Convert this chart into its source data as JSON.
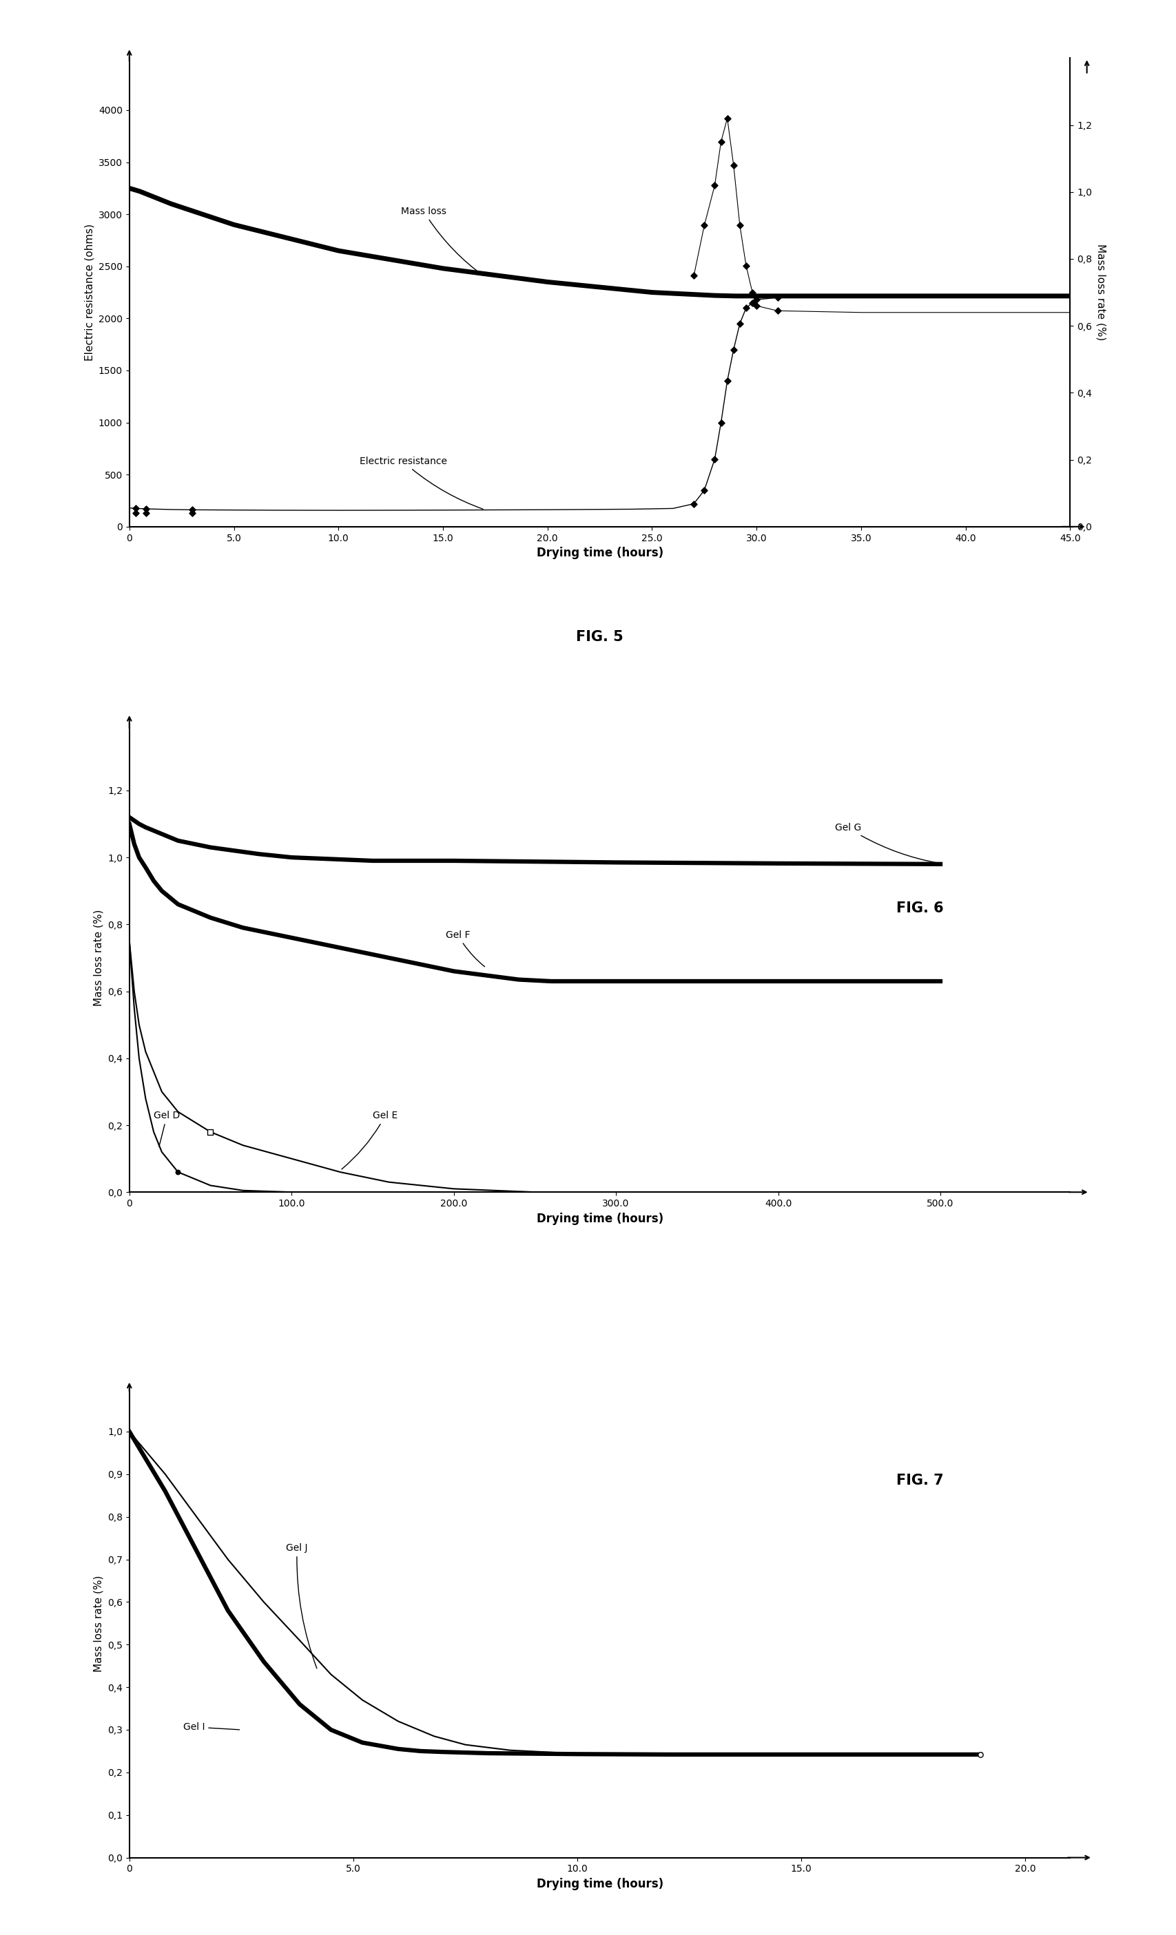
{
  "fig5": {
    "title": "FIG. 5",
    "xlabel": "Drying time (hours)",
    "ylabel_left": "Electric resistance (ohms)",
    "ylabel_right": "Mass loss rate (%)",
    "resistance_x": [
      0,
      0.3,
      0.8,
      1,
      2,
      3,
      5,
      7,
      10,
      13,
      16,
      20,
      24,
      26,
      27,
      27.5,
      28,
      28.3,
      28.6,
      28.9,
      29.2,
      29.5,
      29.8,
      30,
      31,
      33,
      36,
      40,
      45
    ],
    "resistance_y": [
      180,
      175,
      172,
      170,
      165,
      162,
      160,
      158,
      157,
      158,
      160,
      163,
      168,
      175,
      220,
      350,
      650,
      1000,
      1400,
      1700,
      1950,
      2100,
      2150,
      2180,
      2200,
      2200,
      2200,
      2200,
      2200
    ],
    "mass_loss_x": [
      0,
      0.5,
      2,
      5,
      10,
      15,
      20,
      25,
      27,
      28,
      29,
      30,
      35,
      40,
      45
    ],
    "mass_loss_y": [
      3250,
      3220,
      3100,
      2900,
      2650,
      2480,
      2350,
      2250,
      2230,
      2220,
      2215,
      2215,
      2215,
      2215,
      2215
    ],
    "mlr_line_x": [
      27.0,
      27.5,
      28.0,
      28.3,
      28.6,
      28.9,
      29.2,
      29.5,
      29.8,
      30.0,
      31.0,
      35.0,
      40.0,
      45.0
    ],
    "mlr_line_y": [
      0.75,
      0.9,
      1.02,
      1.15,
      1.22,
      1.08,
      0.9,
      0.78,
      0.7,
      0.66,
      0.645,
      0.64,
      0.64,
      0.64
    ],
    "mlr_marker_x": [
      0.3,
      0.8,
      3.0,
      27.0,
      27.5,
      28.0,
      28.3,
      28.6,
      28.9,
      29.2,
      29.5,
      29.8,
      30.0,
      31.0
    ],
    "mlr_marker_y": [
      0.04,
      0.04,
      0.04,
      0.75,
      0.9,
      1.02,
      1.15,
      1.22,
      1.08,
      0.9,
      0.78,
      0.7,
      0.66,
      0.645
    ],
    "xlim": [
      0,
      45
    ],
    "ylim_left": [
      0,
      4500
    ],
    "ylim_right": [
      0.0,
      1.4
    ],
    "xticks": [
      0,
      5.0,
      10.0,
      15.0,
      20.0,
      25.0,
      30.0,
      35.0,
      40.0,
      45.0
    ],
    "yticks_left": [
      0,
      500,
      1000,
      1500,
      2000,
      2500,
      3000,
      3500,
      4000
    ],
    "yticks_right": [
      0.0,
      0.2,
      0.4,
      0.6,
      0.8,
      1.0,
      1.2
    ]
  },
  "fig6": {
    "title": "FIG. 6",
    "xlabel": "Drying time (hours)",
    "ylabel": "Mass loss rate (%)",
    "xlim": [
      0,
      580
    ],
    "ylim": [
      0.0,
      1.4
    ],
    "xticks": [
      0,
      100.0,
      200.0,
      300.0,
      400.0,
      500.0
    ],
    "yticks": [
      0.0,
      0.2,
      0.4,
      0.6,
      0.8,
      1.0,
      1.2
    ],
    "gel_D_x": [
      0,
      3,
      6,
      10,
      15,
      20,
      30,
      50,
      70,
      100,
      150,
      200,
      300,
      500
    ],
    "gel_D_y": [
      0.75,
      0.55,
      0.4,
      0.28,
      0.18,
      0.12,
      0.06,
      0.02,
      0.005,
      0.0,
      0.0,
      0.0,
      0.0,
      0.0
    ],
    "gel_E_x": [
      0,
      3,
      6,
      10,
      15,
      20,
      30,
      50,
      70,
      100,
      130,
      160,
      200,
      250,
      300,
      500
    ],
    "gel_E_y": [
      0.75,
      0.6,
      0.5,
      0.42,
      0.36,
      0.3,
      0.24,
      0.18,
      0.14,
      0.1,
      0.06,
      0.03,
      0.01,
      0.0,
      0.0,
      0.0
    ],
    "gel_F_x": [
      0,
      3,
      6,
      10,
      15,
      20,
      30,
      50,
      70,
      100,
      130,
      160,
      200,
      240,
      260,
      300,
      400,
      500
    ],
    "gel_F_y": [
      1.1,
      1.04,
      1.0,
      0.97,
      0.93,
      0.9,
      0.86,
      0.82,
      0.79,
      0.76,
      0.73,
      0.7,
      0.66,
      0.635,
      0.63,
      0.63,
      0.63,
      0.63
    ],
    "gel_G_x": [
      0,
      3,
      6,
      10,
      20,
      30,
      50,
      80,
      100,
      150,
      200,
      300,
      400,
      500
    ],
    "gel_G_y": [
      1.12,
      1.11,
      1.1,
      1.09,
      1.07,
      1.05,
      1.03,
      1.01,
      1.0,
      0.99,
      0.99,
      0.985,
      0.982,
      0.98
    ],
    "sq_marker_x": 50,
    "sq_marker_y": 0.48,
    "circ_marker_x": 30,
    "circ_marker_y": 0.33
  },
  "fig7": {
    "title": "FIG. 7",
    "xlabel": "Drying time (hours)",
    "ylabel": "Mass loss rate (%)",
    "xlim": [
      0,
      21
    ],
    "ylim": [
      0.0,
      1.1
    ],
    "xticks": [
      0,
      5.0,
      10.0,
      15.0,
      20.0
    ],
    "yticks": [
      0.0,
      0.1,
      0.2,
      0.3,
      0.4,
      0.5,
      0.6,
      0.7,
      0.8,
      0.9,
      1.0
    ],
    "gel_I_x": [
      0,
      0.8,
      1.5,
      2.2,
      3.0,
      3.8,
      4.5,
      5.2,
      6.0,
      6.5,
      7.0,
      8.0,
      10.0,
      12.0,
      15.0,
      19.0
    ],
    "gel_I_y": [
      1.0,
      0.86,
      0.72,
      0.58,
      0.46,
      0.36,
      0.3,
      0.27,
      0.255,
      0.25,
      0.248,
      0.245,
      0.243,
      0.242,
      0.242,
      0.242
    ],
    "gel_J_x": [
      0,
      0.8,
      1.5,
      2.2,
      3.0,
      3.8,
      4.5,
      5.2,
      6.0,
      6.8,
      7.5,
      8.5,
      10.0,
      12.0,
      15.0,
      19.0
    ],
    "gel_J_y": [
      1.0,
      0.9,
      0.8,
      0.7,
      0.6,
      0.51,
      0.43,
      0.37,
      0.32,
      0.285,
      0.265,
      0.252,
      0.244,
      0.242,
      0.242,
      0.242
    ],
    "end_marker_x": 19.0,
    "end_marker_y": 0.242
  },
  "background_color": "#ffffff",
  "line_color": "#000000"
}
